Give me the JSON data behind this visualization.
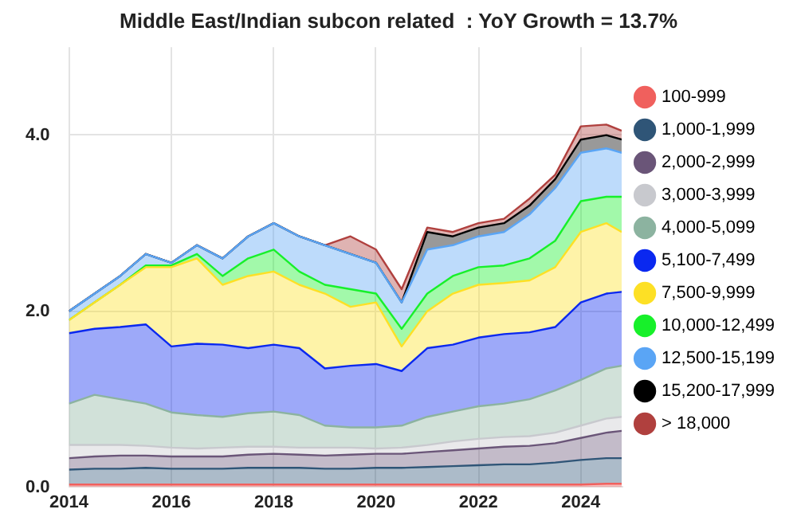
{
  "chart_data": {
    "type": "area",
    "title": "Middle East/Indian subcon related  : YoY Growth = 13.7%",
    "stacked": true,
    "x": [
      2014,
      2014.5,
      2015,
      2015.5,
      2016,
      2016.5,
      2017,
      2017.5,
      2018,
      2018.5,
      2019,
      2019.5,
      2020,
      2020.5,
      2021,
      2021.5,
      2022,
      2022.5,
      2023,
      2023.5,
      2024,
      2024.5,
      2024.8
    ],
    "xlim": [
      2014,
      2024.8
    ],
    "xticks": [
      2014,
      2016,
      2018,
      2020,
      2022,
      2024
    ],
    "ylim": [
      0,
      5
    ],
    "yticks": [
      {
        "value": 0,
        "label": "0.0"
      },
      {
        "value": 2,
        "label": "2.0"
      },
      {
        "value": 4,
        "label": "4.0"
      }
    ],
    "grid": true,
    "legend": "right",
    "marker": "none",
    "series": [
      {
        "name": "100-999",
        "color": "#f0605d",
        "values": [
          0.03,
          0.03,
          0.03,
          0.03,
          0.03,
          0.03,
          0.03,
          0.03,
          0.03,
          0.03,
          0.03,
          0.03,
          0.03,
          0.03,
          0.03,
          0.03,
          0.03,
          0.03,
          0.03,
          0.03,
          0.03,
          0.04,
          0.04
        ]
      },
      {
        "name": "1,000-1,999",
        "color": "#2f5577",
        "values": [
          0.17,
          0.18,
          0.18,
          0.19,
          0.18,
          0.18,
          0.18,
          0.19,
          0.19,
          0.19,
          0.18,
          0.18,
          0.19,
          0.19,
          0.2,
          0.21,
          0.22,
          0.23,
          0.23,
          0.25,
          0.28,
          0.29,
          0.29
        ]
      },
      {
        "name": "2,000-2,999",
        "color": "#6a5578",
        "values": [
          0.13,
          0.14,
          0.15,
          0.14,
          0.14,
          0.14,
          0.14,
          0.15,
          0.16,
          0.15,
          0.15,
          0.16,
          0.16,
          0.16,
          0.17,
          0.18,
          0.19,
          0.2,
          0.21,
          0.22,
          0.25,
          0.29,
          0.31
        ]
      },
      {
        "name": "3,000-3,999",
        "color": "#c8c9ce",
        "values": [
          0.15,
          0.13,
          0.12,
          0.11,
          0.1,
          0.09,
          0.1,
          0.09,
          0.08,
          0.08,
          0.09,
          0.08,
          0.06,
          0.07,
          0.08,
          0.1,
          0.11,
          0.11,
          0.11,
          0.12,
          0.14,
          0.16,
          0.16
        ]
      },
      {
        "name": "4,000-5,099",
        "color": "#8cb3a0",
        "values": [
          0.47,
          0.57,
          0.52,
          0.48,
          0.4,
          0.38,
          0.35,
          0.38,
          0.4,
          0.37,
          0.25,
          0.23,
          0.24,
          0.25,
          0.32,
          0.34,
          0.37,
          0.38,
          0.42,
          0.48,
          0.52,
          0.57,
          0.58
        ]
      },
      {
        "name": "5,100-7,499",
        "color": "#0a28f0",
        "values": [
          0.8,
          0.75,
          0.82,
          0.9,
          0.75,
          0.81,
          0.82,
          0.74,
          0.76,
          0.76,
          0.65,
          0.7,
          0.72,
          0.62,
          0.78,
          0.76,
          0.78,
          0.79,
          0.76,
          0.72,
          0.88,
          0.85,
          0.84
        ]
      },
      {
        "name": "7,500-9,999",
        "color": "#fde025",
        "values": [
          0.15,
          0.3,
          0.48,
          0.65,
          0.9,
          0.97,
          0.68,
          0.82,
          0.83,
          0.72,
          0.85,
          0.67,
          0.7,
          0.28,
          0.42,
          0.58,
          0.6,
          0.58,
          0.59,
          0.68,
          0.8,
          0.8,
          0.68
        ]
      },
      {
        "name": "10,000-12,499",
        "color": "#17f02a",
        "values": [
          0,
          0,
          0,
          0.02,
          0.02,
          0.05,
          0.1,
          0.2,
          0.25,
          0.15,
          0.1,
          0.2,
          0.1,
          0.2,
          0.2,
          0.2,
          0.2,
          0.2,
          0.25,
          0.3,
          0.35,
          0.3,
          0.4
        ]
      },
      {
        "name": "12,500-15,199",
        "color": "#5aa5f5",
        "values": [
          0.1,
          0.1,
          0.1,
          0.13,
          0.03,
          0.1,
          0.2,
          0.25,
          0.3,
          0.4,
          0.45,
          0.4,
          0.35,
          0.3,
          0.5,
          0.35,
          0.35,
          0.38,
          0.5,
          0.6,
          0.55,
          0.55,
          0.5
        ]
      },
      {
        "name": "15,200-17,999",
        "color": "#000000",
        "values": [
          0,
          0,
          0,
          0,
          0,
          0,
          0,
          0,
          0,
          0,
          0,
          0,
          0,
          0,
          0.2,
          0.1,
          0.1,
          0.1,
          0.1,
          0.1,
          0.15,
          0.15,
          0.15
        ]
      },
      {
        "name": "> 18,000",
        "color": "#b0403e",
        "values": [
          0,
          0,
          0,
          0,
          0,
          0,
          0,
          0,
          0,
          0,
          0,
          0.2,
          0.15,
          0.15,
          0.05,
          0.05,
          0.05,
          0.05,
          0.08,
          0.05,
          0.15,
          0.12,
          0.1
        ]
      }
    ]
  }
}
